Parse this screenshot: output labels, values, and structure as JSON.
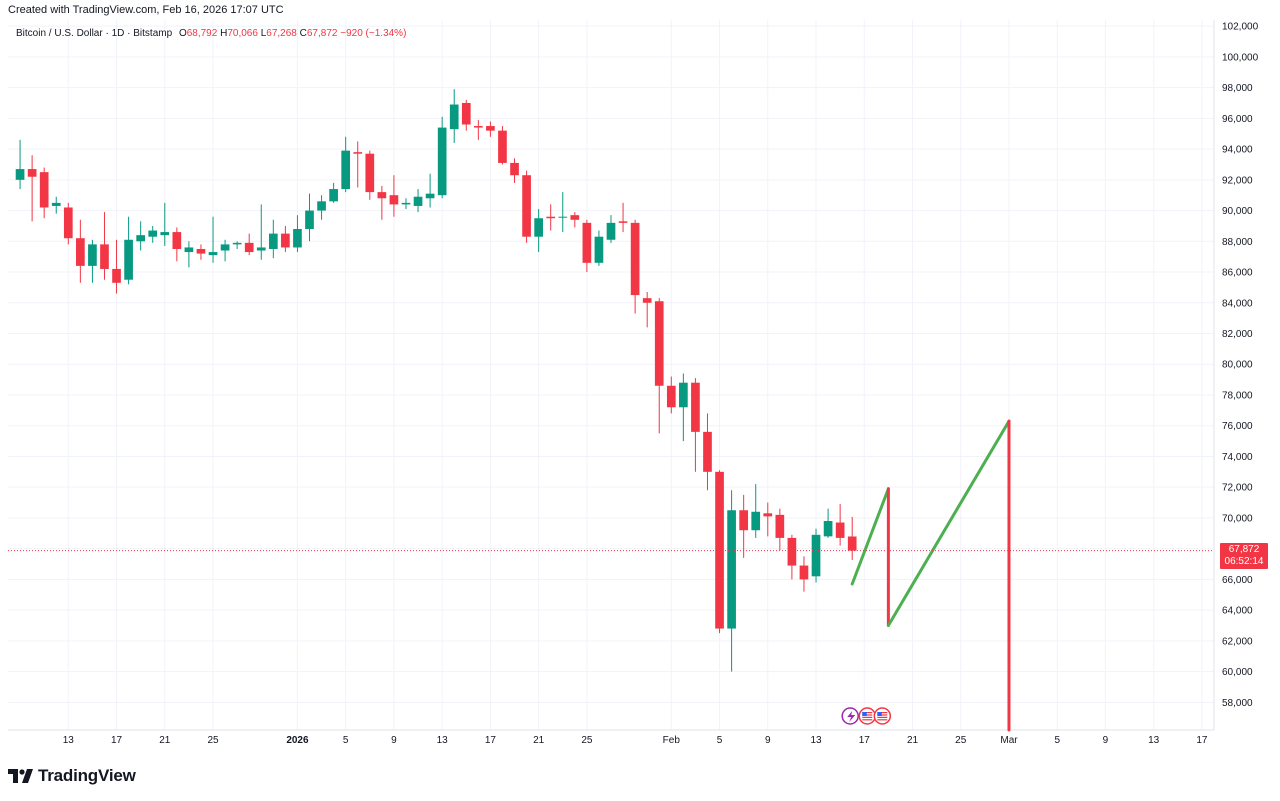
{
  "header": {
    "created_text": "Created with TradingView.com, Feb 16, 2026 17:07 UTC"
  },
  "legend": {
    "symbol": "Bitcoin / U.S. Dollar · 1D · Bitstamp",
    "o_label": "O",
    "o_value": "68,792",
    "h_label": "H",
    "h_value": "70,066",
    "l_label": "L",
    "l_value": "67,268",
    "c_label": "C",
    "c_value": "67,872",
    "change": "−920 (−1.34%)"
  },
  "last_price": {
    "price": "67,872",
    "countdown": "06:52:14",
    "value": 67872
  },
  "colors": {
    "up": "#089981",
    "down": "#f23645",
    "projection_up": "#4caf50",
    "projection_down": "#f23645",
    "grid": "#f0f3fa",
    "axis_text": "#131722"
  },
  "events": {
    "icons": [
      "lightning-icon",
      "us-flag-icon",
      "us-flag-icon"
    ]
  },
  "brand": {
    "name": "TradingView",
    "logo": "tradingview-logo-icon"
  },
  "chart_data": {
    "type": "candlestick",
    "interval": "1D",
    "y_axis": {
      "position": "right",
      "ticks": [
        58000,
        60000,
        62000,
        64000,
        66000,
        68000,
        70000,
        72000,
        74000,
        76000,
        78000,
        80000,
        82000,
        84000,
        86000,
        88000,
        90000,
        92000,
        94000,
        96000,
        98000,
        100000,
        102000
      ],
      "tick_labels": [
        "58,000",
        "60,000",
        "62,000",
        "64,000",
        "66,000",
        "68,000",
        "70,000",
        "72,000",
        "74,000",
        "76,000",
        "78,000",
        "80,000",
        "82,000",
        "84,000",
        "86,000",
        "88,000",
        "90,000",
        "92,000",
        "94,000",
        "96,000",
        "98,000",
        "100,000",
        "102,000"
      ],
      "range": [
        56200,
        102400
      ]
    },
    "x_axis": {
      "range": [
        "2025-12-08",
        "2026-03-18"
      ],
      "ticks": [
        "2025-12-13",
        "2025-12-17",
        "2025-12-21",
        "2025-12-25",
        "2026-01-01",
        "2026-01-05",
        "2026-01-09",
        "2026-01-13",
        "2026-01-17",
        "2026-01-21",
        "2026-01-25",
        "2026-02-01",
        "2026-02-05",
        "2026-02-09",
        "2026-02-13",
        "2026-02-17",
        "2026-02-21",
        "2026-02-25",
        "2026-03-01",
        "2026-03-05",
        "2026-03-09",
        "2026-03-13",
        "2026-03-17"
      ],
      "tick_labels": [
        "13",
        "17",
        "21",
        "25",
        "2026",
        "5",
        "9",
        "13",
        "17",
        "21",
        "25",
        "Feb",
        "5",
        "9",
        "13",
        "17",
        "21",
        "25",
        "Mar",
        "5",
        "9",
        "13",
        "17"
      ],
      "bold_labels": [
        "2026"
      ]
    },
    "grid": true,
    "candles": [
      {
        "d": "2025-12-09",
        "o": 92000,
        "h": 94600,
        "l": 91400,
        "c": 92700
      },
      {
        "d": "2025-12-10",
        "o": 92700,
        "h": 93600,
        "l": 89300,
        "c": 92200
      },
      {
        "d": "2025-12-11",
        "o": 92500,
        "h": 92800,
        "l": 89500,
        "c": 90200
      },
      {
        "d": "2025-12-12",
        "o": 90300,
        "h": 90900,
        "l": 89800,
        "c": 90500
      },
      {
        "d": "2025-12-13",
        "o": 90200,
        "h": 90500,
        "l": 87800,
        "c": 88200
      },
      {
        "d": "2025-12-14",
        "o": 88200,
        "h": 89400,
        "l": 85300,
        "c": 86400
      },
      {
        "d": "2025-12-15",
        "o": 86400,
        "h": 88100,
        "l": 85300,
        "c": 87800
      },
      {
        "d": "2025-12-16",
        "o": 87800,
        "h": 89900,
        "l": 85500,
        "c": 86200
      },
      {
        "d": "2025-12-17",
        "o": 86200,
        "h": 88100,
        "l": 84600,
        "c": 85300
      },
      {
        "d": "2025-12-18",
        "o": 85500,
        "h": 89600,
        "l": 85200,
        "c": 88100
      },
      {
        "d": "2025-12-19",
        "o": 88000,
        "h": 89300,
        "l": 87400,
        "c": 88400
      },
      {
        "d": "2025-12-20",
        "o": 88300,
        "h": 89000,
        "l": 87900,
        "c": 88700
      },
      {
        "d": "2025-12-21",
        "o": 88400,
        "h": 90500,
        "l": 87700,
        "c": 88600
      },
      {
        "d": "2025-12-22",
        "o": 88600,
        "h": 88900,
        "l": 86700,
        "c": 87500
      },
      {
        "d": "2025-12-23",
        "o": 87300,
        "h": 88000,
        "l": 86300,
        "c": 87600
      },
      {
        "d": "2025-12-24",
        "o": 87500,
        "h": 87800,
        "l": 86800,
        "c": 87200
      },
      {
        "d": "2025-12-25",
        "o": 87100,
        "h": 89600,
        "l": 86600,
        "c": 87300
      },
      {
        "d": "2025-12-26",
        "o": 87400,
        "h": 88100,
        "l": 86700,
        "c": 87800
      },
      {
        "d": "2025-12-27",
        "o": 87800,
        "h": 88000,
        "l": 87500,
        "c": 87900
      },
      {
        "d": "2025-12-28",
        "o": 87900,
        "h": 88500,
        "l": 87100,
        "c": 87300
      },
      {
        "d": "2025-12-29",
        "o": 87400,
        "h": 90400,
        "l": 86800,
        "c": 87600
      },
      {
        "d": "2025-12-30",
        "o": 87500,
        "h": 89400,
        "l": 86900,
        "c": 88500
      },
      {
        "d": "2025-12-31",
        "o": 88500,
        "h": 89000,
        "l": 87300,
        "c": 87600
      },
      {
        "d": "2026-01-01",
        "o": 87600,
        "h": 89700,
        "l": 87300,
        "c": 88800
      },
      {
        "d": "2026-01-02",
        "o": 88800,
        "h": 91100,
        "l": 88000,
        "c": 90000
      },
      {
        "d": "2026-01-03",
        "o": 90000,
        "h": 91000,
        "l": 89400,
        "c": 90600
      },
      {
        "d": "2026-01-04",
        "o": 90600,
        "h": 91800,
        "l": 90500,
        "c": 91400
      },
      {
        "d": "2026-01-05",
        "o": 91400,
        "h": 94800,
        "l": 91200,
        "c": 93900
      },
      {
        "d": "2026-01-06",
        "o": 93800,
        "h": 94500,
        "l": 91500,
        "c": 93700
      },
      {
        "d": "2026-01-07",
        "o": 93700,
        "h": 93900,
        "l": 90700,
        "c": 91200
      },
      {
        "d": "2026-01-08",
        "o": 91200,
        "h": 91600,
        "l": 89400,
        "c": 90800
      },
      {
        "d": "2026-01-09",
        "o": 91000,
        "h": 92300,
        "l": 89600,
        "c": 90400
      },
      {
        "d": "2026-01-10",
        "o": 90400,
        "h": 90800,
        "l": 90100,
        "c": 90500
      },
      {
        "d": "2026-01-11",
        "o": 90300,
        "h": 91400,
        "l": 89900,
        "c": 90900
      },
      {
        "d": "2026-01-12",
        "o": 90800,
        "h": 92400,
        "l": 90200,
        "c": 91100
      },
      {
        "d": "2026-01-13",
        "o": 91000,
        "h": 96100,
        "l": 90800,
        "c": 95400
      },
      {
        "d": "2026-01-14",
        "o": 95300,
        "h": 97900,
        "l": 94400,
        "c": 96900
      },
      {
        "d": "2026-01-15",
        "o": 97000,
        "h": 97200,
        "l": 95200,
        "c": 95600
      },
      {
        "d": "2026-01-16",
        "o": 95500,
        "h": 95900,
        "l": 94600,
        "c": 95400
      },
      {
        "d": "2026-01-17",
        "o": 95500,
        "h": 95800,
        "l": 94800,
        "c": 95200
      },
      {
        "d": "2026-01-18",
        "o": 95200,
        "h": 95500,
        "l": 93000,
        "c": 93100
      },
      {
        "d": "2026-01-19",
        "o": 93100,
        "h": 93400,
        "l": 91800,
        "c": 92300
      },
      {
        "d": "2026-01-20",
        "o": 92300,
        "h": 92600,
        "l": 87900,
        "c": 88300
      },
      {
        "d": "2026-01-21",
        "o": 88300,
        "h": 90100,
        "l": 87300,
        "c": 89500
      },
      {
        "d": "2026-01-22",
        "o": 89600,
        "h": 90400,
        "l": 88700,
        "c": 89500
      },
      {
        "d": "2026-01-23",
        "o": 89600,
        "h": 91200,
        "l": 88600,
        "c": 89600
      },
      {
        "d": "2026-01-24",
        "o": 89700,
        "h": 89900,
        "l": 88900,
        "c": 89400
      },
      {
        "d": "2026-01-25",
        "o": 89200,
        "h": 89400,
        "l": 86000,
        "c": 86600
      },
      {
        "d": "2026-01-26",
        "o": 86600,
        "h": 88700,
        "l": 86400,
        "c": 88300
      },
      {
        "d": "2026-01-27",
        "o": 88100,
        "h": 89700,
        "l": 87900,
        "c": 89200
      },
      {
        "d": "2026-01-28",
        "o": 89300,
        "h": 90500,
        "l": 88600,
        "c": 89200
      },
      {
        "d": "2026-01-29",
        "o": 89200,
        "h": 89400,
        "l": 83300,
        "c": 84500
      },
      {
        "d": "2026-01-30",
        "o": 84300,
        "h": 84700,
        "l": 82400,
        "c": 84000
      },
      {
        "d": "2026-01-31",
        "o": 84100,
        "h": 84300,
        "l": 75500,
        "c": 78600
      },
      {
        "d": "2026-02-01",
        "o": 78600,
        "h": 79200,
        "l": 76800,
        "c": 77200
      },
      {
        "d": "2026-02-02",
        "o": 77200,
        "h": 79400,
        "l": 75000,
        "c": 78800
      },
      {
        "d": "2026-02-03",
        "o": 78800,
        "h": 79100,
        "l": 73000,
        "c": 75600
      },
      {
        "d": "2026-02-04",
        "o": 75600,
        "h": 76800,
        "l": 71800,
        "c": 73000
      },
      {
        "d": "2026-02-05",
        "o": 73000,
        "h": 73100,
        "l": 62500,
        "c": 62800
      },
      {
        "d": "2026-02-06",
        "o": 62800,
        "h": 71800,
        "l": 60000,
        "c": 70500
      },
      {
        "d": "2026-02-07",
        "o": 70500,
        "h": 71500,
        "l": 67400,
        "c": 69200
      },
      {
        "d": "2026-02-08",
        "o": 69200,
        "h": 72200,
        "l": 68700,
        "c": 70400
      },
      {
        "d": "2026-02-09",
        "o": 70300,
        "h": 71000,
        "l": 68800,
        "c": 70100
      },
      {
        "d": "2026-02-10",
        "o": 70200,
        "h": 70600,
        "l": 67900,
        "c": 68700
      },
      {
        "d": "2026-02-11",
        "o": 68700,
        "h": 68900,
        "l": 66000,
        "c": 66900
      },
      {
        "d": "2026-02-12",
        "o": 66900,
        "h": 67500,
        "l": 65200,
        "c": 66000
      },
      {
        "d": "2026-02-13",
        "o": 66200,
        "h": 69300,
        "l": 65800,
        "c": 68900
      },
      {
        "d": "2026-02-14",
        "o": 68800,
        "h": 70600,
        "l": 68700,
        "c": 69800
      },
      {
        "d": "2026-02-15",
        "o": 69700,
        "h": 70900,
        "l": 68200,
        "c": 68700
      },
      {
        "d": "2026-02-16",
        "o": 68792,
        "h": 70066,
        "l": 67268,
        "c": 67872
      }
    ],
    "projection": [
      {
        "d": "2026-02-16",
        "v": 65700
      },
      {
        "d": "2026-02-19",
        "v": 71900
      },
      {
        "d": "2026-02-19",
        "v": 63000
      },
      {
        "d": "2026-03-01",
        "v": 76300
      },
      {
        "d": "2026-03-01",
        "v": 56200
      }
    ],
    "last_price_line": 67872
  }
}
